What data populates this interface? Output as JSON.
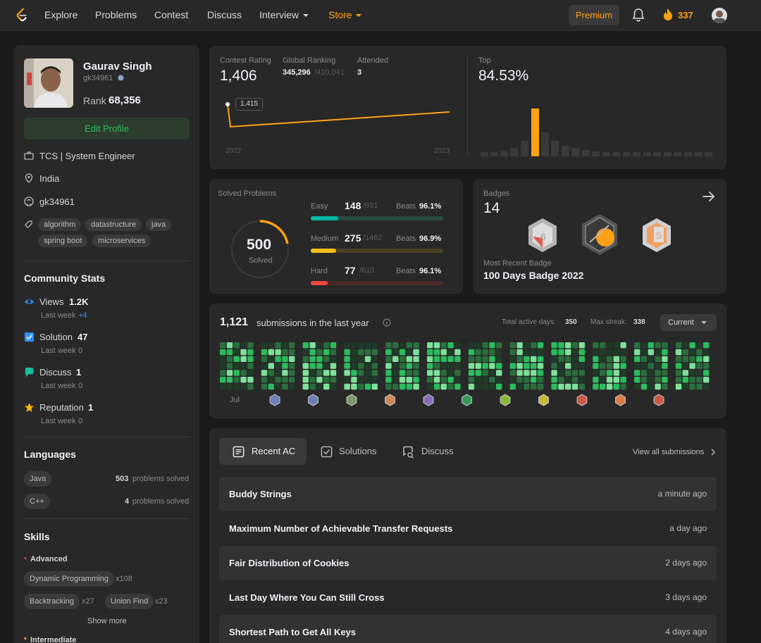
{
  "nav": {
    "items": [
      "Explore",
      "Problems",
      "Contest",
      "Discuss",
      "Interview",
      "Store"
    ],
    "premium": "Premium",
    "streak": "337"
  },
  "profile": {
    "name": "Gaurav Singh",
    "username": "gk34961",
    "rank_label": "Rank",
    "rank": "68,356",
    "edit_button": "Edit Profile",
    "company": "TCS | System Engineer",
    "location": "India",
    "github": "gk34961",
    "tags": [
      "algorithm",
      "datastructure",
      "java",
      "spring boot",
      "microservices"
    ]
  },
  "community": {
    "title": "Community Stats",
    "stats": [
      {
        "label": "Views",
        "value": "1.2K",
        "sub": "Last week",
        "delta": "+4",
        "color": "#2e8fff"
      },
      {
        "label": "Solution",
        "value": "47",
        "sub": "Last week",
        "delta": "0",
        "color": "#2e8fff"
      },
      {
        "label": "Discuss",
        "value": "1",
        "sub": "Last week",
        "delta": "0",
        "color": "#1bbf9f"
      },
      {
        "label": "Reputation",
        "value": "1",
        "sub": "Last week",
        "delta": "0",
        "color": "#ffb800"
      }
    ]
  },
  "languages": {
    "title": "Languages",
    "items": [
      {
        "name": "Java",
        "count": "503",
        "suffix": "problems solved"
      },
      {
        "name": "C++",
        "count": "4",
        "suffix": "problems solved"
      }
    ]
  },
  "skills": {
    "title": "Skills",
    "advanced_label": "Advanced",
    "advanced": [
      {
        "name": "Dynamic Programming",
        "count": "x108"
      },
      {
        "name": "Backtracking",
        "count": "x27"
      },
      {
        "name": "Union Find",
        "count": "x23"
      }
    ],
    "show_more": "Show more",
    "intermediate_label": "Intermediate"
  },
  "contest": {
    "rating_label": "Contest Rating",
    "rating": "1,406",
    "ranking_label": "Global Ranking",
    "ranking": "345,296",
    "ranking_total": "/410,041",
    "attended_label": "Attended",
    "attended": "3",
    "tooltip": "1,415",
    "x_start": "2022",
    "x_end": "2023",
    "top_label": "Top",
    "top_value": "84.53%"
  },
  "solved": {
    "title": "Solved Problems",
    "total": "500",
    "total_label": "Solved",
    "beats_label": "Beats",
    "levels": [
      {
        "name": "Easy",
        "solved": "148",
        "total": "/691",
        "beats": "96.1%",
        "color": "#00b8a3",
        "track": "#2a4a42",
        "fraction": 0.214
      },
      {
        "name": "Medium",
        "solved": "275",
        "total": "/1462",
        "beats": "96.9%",
        "color": "#ffc01e",
        "track": "#4a4226",
        "fraction": 0.188
      },
      {
        "name": "Hard",
        "solved": "77",
        "total": "/610",
        "beats": "96.1%",
        "color": "#ef4743",
        "track": "#4a2a2a",
        "fraction": 0.126
      }
    ]
  },
  "badges": {
    "title": "Badges",
    "count": "14",
    "recent_label": "Most Recent Badge",
    "recent": "100 Days Badge 2022"
  },
  "submissions": {
    "count": "1,121",
    "text": "submissions in the last year",
    "active_label": "Total active days:",
    "active": "350",
    "streak_label": "Max streak:",
    "streak": "338",
    "dropdown": "Current",
    "first_month": "Jul"
  },
  "recent": {
    "tabs": [
      "Recent AC",
      "Solutions",
      "Discuss"
    ],
    "view_all": "View all submissions",
    "rows": [
      {
        "title": "Buddy Strings",
        "time": "a minute ago"
      },
      {
        "title": "Maximum Number of Achievable Transfer Requests",
        "time": "a day ago"
      },
      {
        "title": "Fair Distribution of Cookies",
        "time": "2 days ago"
      },
      {
        "title": "Last Day Where You Can Still Cross",
        "time": "3 days ago"
      },
      {
        "title": "Shortest Path to Get All Keys",
        "time": "4 days ago"
      }
    ]
  }
}
